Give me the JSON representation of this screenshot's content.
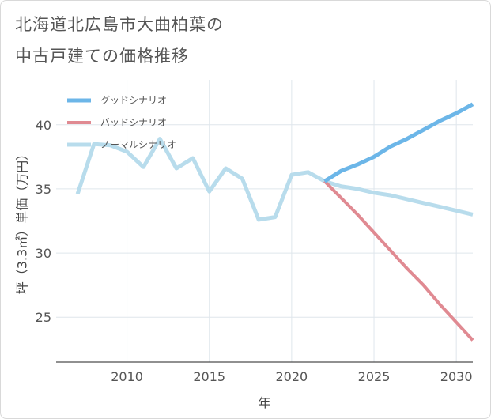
{
  "title_line1": "北海道北広島市大曲柏葉の",
  "title_line2": "中古戸建ての価格推移",
  "chart_data": {
    "type": "line",
    "title": "北海道北広島市大曲柏葉の中古戸建ての価格推移",
    "xlabel": "年",
    "ylabel": "坪（3.3㎡）単価（万円）",
    "xlim": [
      2005.7,
      2031
    ],
    "ylim": [
      21.5,
      43.5
    ],
    "xticks": [
      2010,
      2015,
      2020,
      2025,
      2030
    ],
    "yticks": [
      25,
      30,
      35,
      40
    ],
    "legend_position": "top-left",
    "series": [
      {
        "name": "グッドシナリオ",
        "color": "#6cb6e8",
        "width": 5,
        "x": [
          2022,
          2023,
          2024,
          2025,
          2026,
          2027,
          2028,
          2029,
          2030,
          2031
        ],
        "y": [
          35.6,
          36.4,
          36.9,
          37.5,
          38.3,
          38.9,
          39.6,
          40.3,
          40.9,
          41.6
        ]
      },
      {
        "name": "バッドシナリオ",
        "color": "#e08a92",
        "width": 4,
        "x": [
          2022,
          2023,
          2024,
          2025,
          2026,
          2027,
          2028,
          2029,
          2030,
          2031
        ],
        "y": [
          35.6,
          34.3,
          33.0,
          31.6,
          30.2,
          28.8,
          27.5,
          26.0,
          24.6,
          23.2
        ]
      },
      {
        "name": "ノーマルシナリオ",
        "color": "#b8dcec",
        "width": 5,
        "x": [
          2007,
          2008,
          2009,
          2010,
          2011,
          2012,
          2013,
          2014,
          2015,
          2016,
          2017,
          2018,
          2019,
          2020,
          2021,
          2022,
          2023,
          2024,
          2025,
          2026,
          2027,
          2028,
          2029,
          2030,
          2031
        ],
        "y": [
          34.6,
          38.5,
          38.4,
          37.9,
          36.7,
          38.9,
          36.6,
          37.4,
          34.8,
          36.6,
          35.8,
          32.6,
          32.8,
          36.1,
          36.3,
          35.6,
          35.2,
          35.0,
          34.7,
          34.5,
          34.2,
          33.9,
          33.6,
          33.3,
          33.0
        ]
      }
    ]
  }
}
